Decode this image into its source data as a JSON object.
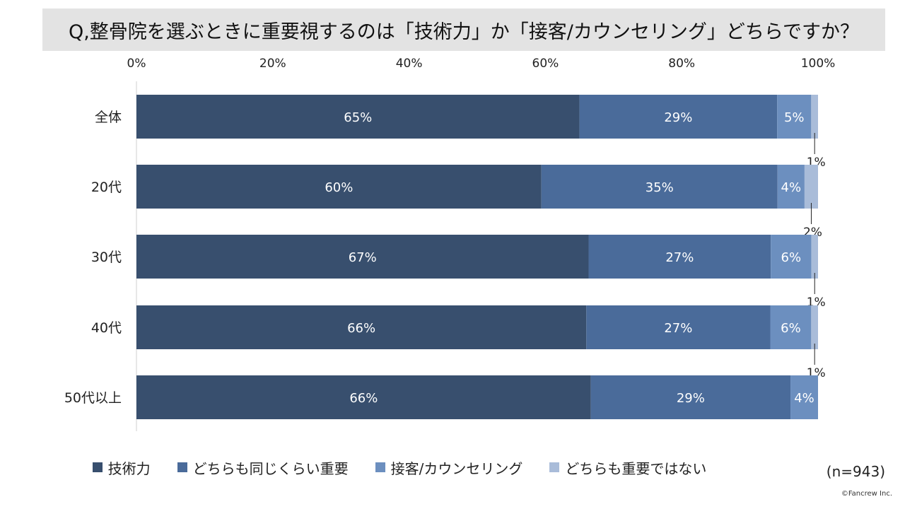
{
  "title": "Q,整骨院を選ぶときに重要視するのは「技術力」か「接客/カウンセリング」どちらですか？",
  "sample_size": "(n=943)",
  "credit": "©Fancrew Inc.",
  "chart_data": {
    "type": "bar",
    "orientation": "horizontal",
    "stacked": "percent",
    "categories": [
      "全体",
      "20代",
      "30代",
      "40代",
      "50代以上"
    ],
    "x_ticks": [
      "0%",
      "20%",
      "40%",
      "60%",
      "80%",
      "100%"
    ],
    "xlim": [
      0,
      100
    ],
    "grid": false,
    "legend_position": "bottom",
    "series": [
      {
        "name": "技術力",
        "color": "#384f6e",
        "values": [
          65,
          60,
          67,
          66,
          66
        ],
        "labels": [
          "65%",
          "60%",
          "67%",
          "66%",
          "66%"
        ]
      },
      {
        "name": "どちらも同じくらい重要",
        "color": "#4a6b9a",
        "values": [
          29,
          35,
          27,
          27,
          29
        ],
        "labels": [
          "29%",
          "35%",
          "27%",
          "27%",
          "29%"
        ]
      },
      {
        "name": "接客/カウンセリング",
        "color": "#6c8fbf",
        "values": [
          5,
          4,
          6,
          6,
          4
        ],
        "labels": [
          "5%",
          "4%",
          "6%",
          "6%",
          "4%"
        ]
      },
      {
        "name": "どちらも重要ではない",
        "color": "#a9bcd9",
        "values": [
          1,
          2,
          1,
          1,
          0
        ],
        "labels": [
          "1%",
          "2%",
          "1%",
          "1%",
          ""
        ]
      }
    ]
  }
}
